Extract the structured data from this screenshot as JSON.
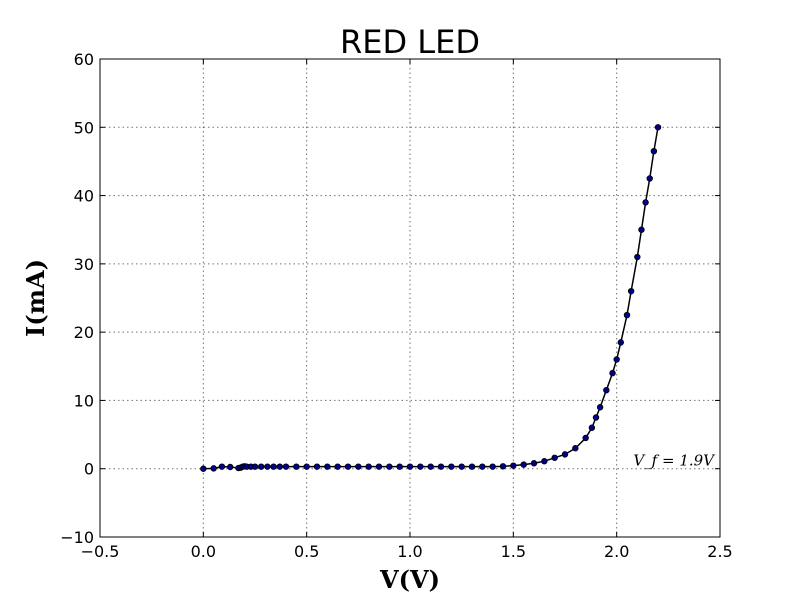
{
  "chart_data": {
    "type": "scatter",
    "title": "RED LED",
    "xlabel": "V(V)",
    "ylabel": "I(mA)",
    "xlim": [
      -0.5,
      2.5
    ],
    "ylim": [
      -10,
      60
    ],
    "x_ticks": [
      -0.5,
      0.0,
      0.5,
      1.0,
      1.5,
      2.0,
      2.5
    ],
    "x_tick_labels": [
      "−0.5",
      "0.0",
      "0.5",
      "1.0",
      "1.5",
      "2.0",
      "2.5"
    ],
    "y_ticks": [
      -10,
      0,
      10,
      20,
      30,
      40,
      50,
      60
    ],
    "y_tick_labels": [
      "−10",
      "0",
      "10",
      "20",
      "30",
      "40",
      "50",
      "60"
    ],
    "grid": true,
    "annotation": {
      "text": "V_f = 1.9V",
      "x": 2.1,
      "y": 0.5
    },
    "series": [
      {
        "color": "#00008b",
        "marker": "circle",
        "line": true,
        "x": [
          0.0,
          0.05,
          0.09,
          0.13,
          0.17,
          0.18,
          0.19,
          0.2,
          0.21,
          0.23,
          0.25,
          0.28,
          0.31,
          0.34,
          0.37,
          0.4,
          0.45,
          0.5,
          0.55,
          0.6,
          0.65,
          0.7,
          0.75,
          0.8,
          0.85,
          0.9,
          0.95,
          1.0,
          1.05,
          1.1,
          1.15,
          1.2,
          1.25,
          1.3,
          1.35,
          1.4,
          1.45,
          1.5,
          1.55,
          1.6,
          1.65,
          1.7,
          1.75,
          1.8,
          1.85,
          1.88,
          1.9,
          1.92,
          1.95,
          1.98,
          2.0,
          2.02,
          2.05,
          2.07,
          2.1,
          2.12,
          2.14,
          2.16,
          2.18,
          2.2
        ],
        "y": [
          0.0,
          0.05,
          0.3,
          0.25,
          0.1,
          0.15,
          0.3,
          0.35,
          0.3,
          0.3,
          0.3,
          0.3,
          0.3,
          0.3,
          0.3,
          0.3,
          0.3,
          0.3,
          0.3,
          0.3,
          0.3,
          0.3,
          0.3,
          0.3,
          0.3,
          0.3,
          0.3,
          0.3,
          0.3,
          0.3,
          0.3,
          0.3,
          0.3,
          0.3,
          0.3,
          0.3,
          0.35,
          0.45,
          0.6,
          0.8,
          1.1,
          1.6,
          2.1,
          3.0,
          4.5,
          6.0,
          7.5,
          9.0,
          11.5,
          14.0,
          16.0,
          18.5,
          22.5,
          26.0,
          31.0,
          35.0,
          39.0,
          42.5,
          46.5,
          50.0
        ]
      }
    ]
  }
}
